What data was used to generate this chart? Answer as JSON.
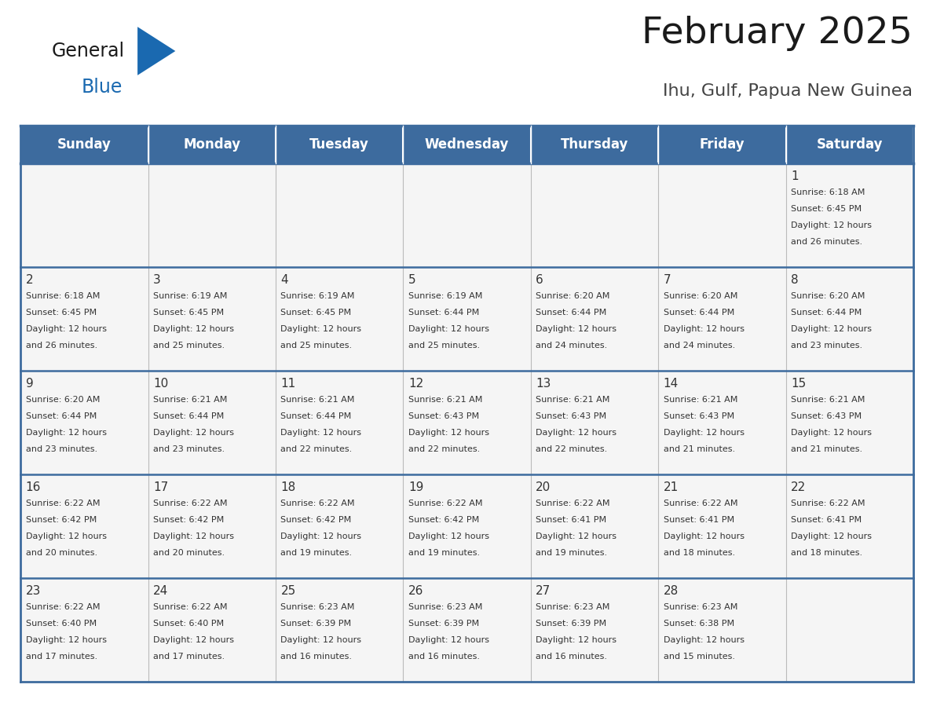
{
  "title": "February 2025",
  "subtitle": "Ihu, Gulf, Papua New Guinea",
  "days_of_week": [
    "Sunday",
    "Monday",
    "Tuesday",
    "Wednesday",
    "Thursday",
    "Friday",
    "Saturday"
  ],
  "header_bg": "#3d6b9e",
  "header_text": "#ffffff",
  "cell_bg": "#f5f5f5",
  "border_color": "#3d6b9e",
  "inner_border_color": "#bbbbbb",
  "text_color": "#333333",
  "day_number_color": "#333333",
  "title_color": "#1a1a1a",
  "subtitle_color": "#444444",
  "general_text_color": "#1a1a1a",
  "blue_text_color": "#1a69b0",
  "triangle_color": "#1a69b0",
  "calendar_data": [
    [
      {
        "day": "",
        "sunrise": "",
        "sunset": "",
        "daylight": ""
      },
      {
        "day": "",
        "sunrise": "",
        "sunset": "",
        "daylight": ""
      },
      {
        "day": "",
        "sunrise": "",
        "sunset": "",
        "daylight": ""
      },
      {
        "day": "",
        "sunrise": "",
        "sunset": "",
        "daylight": ""
      },
      {
        "day": "",
        "sunrise": "",
        "sunset": "",
        "daylight": ""
      },
      {
        "day": "",
        "sunrise": "",
        "sunset": "",
        "daylight": ""
      },
      {
        "day": "1",
        "sunrise": "6:18 AM",
        "sunset": "6:45 PM",
        "daylight": "12 hours and 26 minutes."
      }
    ],
    [
      {
        "day": "2",
        "sunrise": "6:18 AM",
        "sunset": "6:45 PM",
        "daylight": "12 hours and 26 minutes."
      },
      {
        "day": "3",
        "sunrise": "6:19 AM",
        "sunset": "6:45 PM",
        "daylight": "12 hours and 25 minutes."
      },
      {
        "day": "4",
        "sunrise": "6:19 AM",
        "sunset": "6:45 PM",
        "daylight": "12 hours and 25 minutes."
      },
      {
        "day": "5",
        "sunrise": "6:19 AM",
        "sunset": "6:44 PM",
        "daylight": "12 hours and 25 minutes."
      },
      {
        "day": "6",
        "sunrise": "6:20 AM",
        "sunset": "6:44 PM",
        "daylight": "12 hours and 24 minutes."
      },
      {
        "day": "7",
        "sunrise": "6:20 AM",
        "sunset": "6:44 PM",
        "daylight": "12 hours and 24 minutes."
      },
      {
        "day": "8",
        "sunrise": "6:20 AM",
        "sunset": "6:44 PM",
        "daylight": "12 hours and 23 minutes."
      }
    ],
    [
      {
        "day": "9",
        "sunrise": "6:20 AM",
        "sunset": "6:44 PM",
        "daylight": "12 hours and 23 minutes."
      },
      {
        "day": "10",
        "sunrise": "6:21 AM",
        "sunset": "6:44 PM",
        "daylight": "12 hours and 23 minutes."
      },
      {
        "day": "11",
        "sunrise": "6:21 AM",
        "sunset": "6:44 PM",
        "daylight": "12 hours and 22 minutes."
      },
      {
        "day": "12",
        "sunrise": "6:21 AM",
        "sunset": "6:43 PM",
        "daylight": "12 hours and 22 minutes."
      },
      {
        "day": "13",
        "sunrise": "6:21 AM",
        "sunset": "6:43 PM",
        "daylight": "12 hours and 22 minutes."
      },
      {
        "day": "14",
        "sunrise": "6:21 AM",
        "sunset": "6:43 PM",
        "daylight": "12 hours and 21 minutes."
      },
      {
        "day": "15",
        "sunrise": "6:21 AM",
        "sunset": "6:43 PM",
        "daylight": "12 hours and 21 minutes."
      }
    ],
    [
      {
        "day": "16",
        "sunrise": "6:22 AM",
        "sunset": "6:42 PM",
        "daylight": "12 hours and 20 minutes."
      },
      {
        "day": "17",
        "sunrise": "6:22 AM",
        "sunset": "6:42 PM",
        "daylight": "12 hours and 20 minutes."
      },
      {
        "day": "18",
        "sunrise": "6:22 AM",
        "sunset": "6:42 PM",
        "daylight": "12 hours and 19 minutes."
      },
      {
        "day": "19",
        "sunrise": "6:22 AM",
        "sunset": "6:42 PM",
        "daylight": "12 hours and 19 minutes."
      },
      {
        "day": "20",
        "sunrise": "6:22 AM",
        "sunset": "6:41 PM",
        "daylight": "12 hours and 19 minutes."
      },
      {
        "day": "21",
        "sunrise": "6:22 AM",
        "sunset": "6:41 PM",
        "daylight": "12 hours and 18 minutes."
      },
      {
        "day": "22",
        "sunrise": "6:22 AM",
        "sunset": "6:41 PM",
        "daylight": "12 hours and 18 minutes."
      }
    ],
    [
      {
        "day": "23",
        "sunrise": "6:22 AM",
        "sunset": "6:40 PM",
        "daylight": "12 hours and 17 minutes."
      },
      {
        "day": "24",
        "sunrise": "6:22 AM",
        "sunset": "6:40 PM",
        "daylight": "12 hours and 17 minutes."
      },
      {
        "day": "25",
        "sunrise": "6:23 AM",
        "sunset": "6:39 PM",
        "daylight": "12 hours and 16 minutes."
      },
      {
        "day": "26",
        "sunrise": "6:23 AM",
        "sunset": "6:39 PM",
        "daylight": "12 hours and 16 minutes."
      },
      {
        "day": "27",
        "sunrise": "6:23 AM",
        "sunset": "6:39 PM",
        "daylight": "12 hours and 16 minutes."
      },
      {
        "day": "28",
        "sunrise": "6:23 AM",
        "sunset": "6:38 PM",
        "daylight": "12 hours and 15 minutes."
      },
      {
        "day": "",
        "sunrise": "",
        "sunset": "",
        "daylight": ""
      }
    ]
  ]
}
